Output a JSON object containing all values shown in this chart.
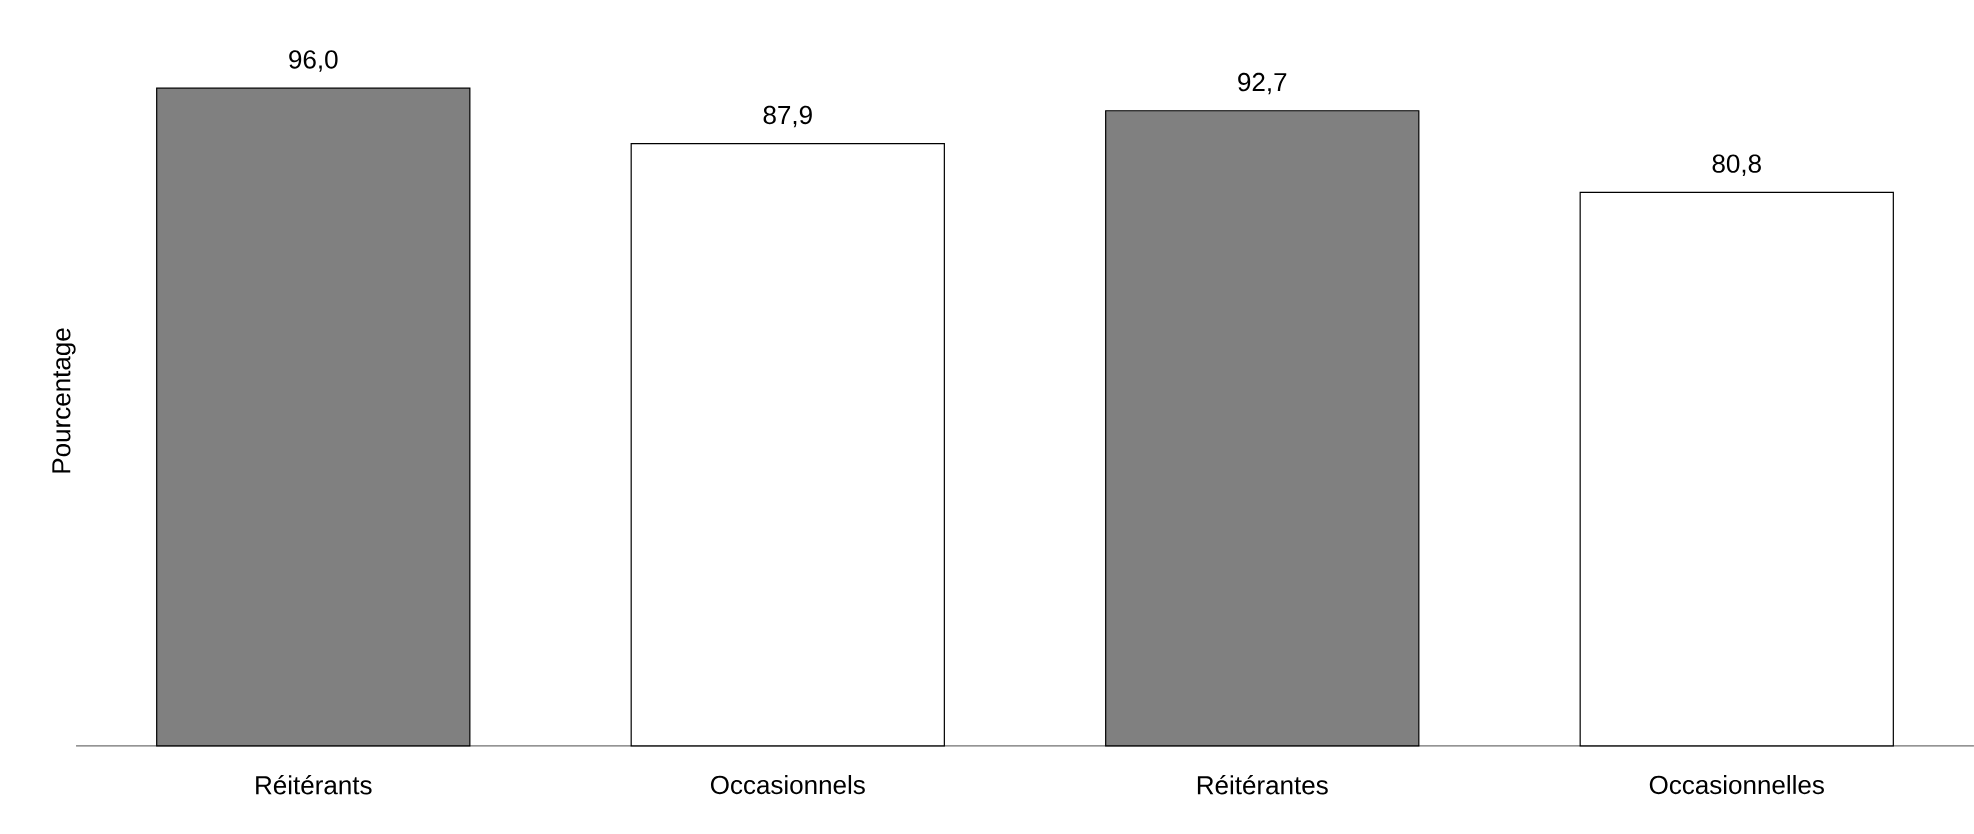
{
  "chart_data": {
    "type": "bar",
    "ylabel": "Pourcentage",
    "categories": [
      "Réitérants",
      "Occasionnels",
      "Réitérantes",
      "Occasionnelles"
    ],
    "values": [
      96.0,
      87.9,
      92.7,
      80.8
    ],
    "colors": [
      "#808080",
      "#ffffff",
      "#808080",
      "#ffffff"
    ],
    "value_labels": [
      "96,0",
      "87,9",
      "92,7",
      "80,8"
    ]
  }
}
